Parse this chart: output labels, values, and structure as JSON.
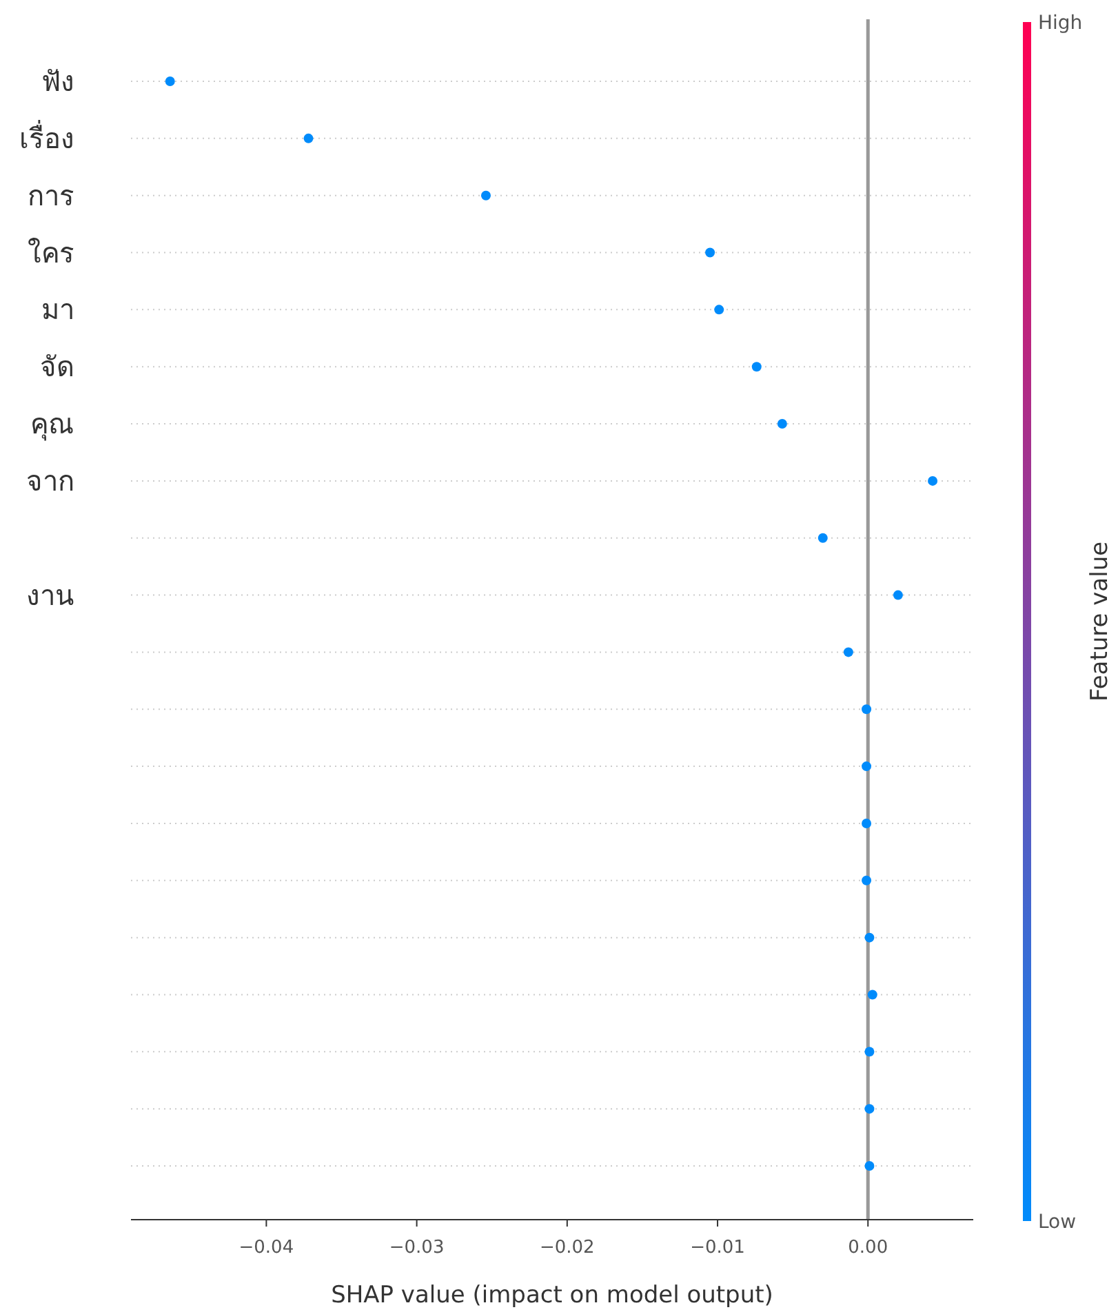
{
  "chart_data": {
    "type": "scatter",
    "categories": [
      "ฟัง",
      "เรื่อง",
      "การ",
      "ใคร",
      "มา",
      "จัด",
      "คุณ",
      "จาก",
      null,
      "งาน",
      null,
      null,
      null,
      null,
      null,
      null,
      null,
      null,
      null,
      null
    ],
    "values": [
      -0.0464,
      -0.0372,
      -0.0254,
      -0.0105,
      -0.0099,
      -0.0074,
      -0.0057,
      0.0043,
      -0.003,
      0.002,
      -0.0013,
      -0.0001,
      -0.0001,
      -0.0001,
      -0.0001,
      0.0001,
      0.0003,
      0.0001,
      0.0001,
      0.0001
    ],
    "cvalues": [
      0,
      0,
      0,
      0,
      0,
      0,
      0,
      0,
      0,
      0,
      0,
      0,
      0,
      0,
      0,
      0,
      0,
      0,
      0,
      0
    ],
    "clim": [
      0,
      1
    ],
    "cticks": [
      {
        "value": 0,
        "label": "Low"
      },
      {
        "value": 1,
        "label": "High"
      }
    ],
    "clabel": "Feature value",
    "orientation": "horizontal",
    "xlabel": "SHAP value (impact on model output)",
    "xlim": [
      -0.049,
      0.007
    ],
    "xticks": [
      {
        "value": -0.04,
        "label": "−0.04"
      },
      {
        "value": -0.03,
        "label": "−0.03"
      },
      {
        "value": -0.02,
        "label": "−0.02"
      },
      {
        "value": -0.01,
        "label": "−0.01"
      },
      {
        "value": 0,
        "label": "0.00"
      }
    ],
    "ref_lines": [
      {
        "axis": "x",
        "value": 0,
        "color": "#999999"
      }
    ],
    "grid": "y",
    "marker": "circle"
  }
}
